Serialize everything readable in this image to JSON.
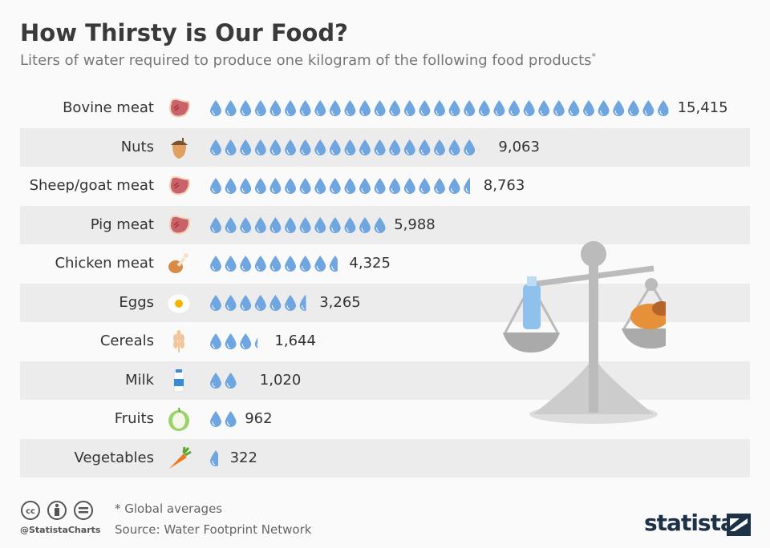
{
  "title": "How Thirsty is Our Food?",
  "subtitle": "Liters of water required to produce one kilogram of the following food products",
  "subtitle_mark": "*",
  "colors": {
    "drop": "#6fa6e0",
    "row_alt": "#ececec",
    "brand": "#1d3147"
  },
  "chart_data": {
    "type": "bar",
    "unit_per_icon": 500,
    "categories": [
      "Bovine meat",
      "Nuts",
      "Sheep/goat meat",
      "Pig meat",
      "Chicken meat",
      "Eggs",
      "Cereals",
      "Milk",
      "Fruits",
      "Vegetables"
    ],
    "values": [
      15415,
      9063,
      8763,
      5988,
      4325,
      3265,
      1644,
      1020,
      962,
      322
    ],
    "labels": [
      "15,415",
      "9,063",
      "8,763",
      "5,988",
      "4,325",
      "3,265",
      "1,644",
      "1,020",
      "962",
      "322"
    ],
    "icons": [
      "steak-icon",
      "acorn-icon",
      "steak-icon",
      "steak-icon",
      "chicken-leg-icon",
      "egg-icon",
      "wheat-icon",
      "milk-icon",
      "apple-icon",
      "carrot-icon"
    ]
  },
  "footer": {
    "note": "* Global averages",
    "source": "Source: Water Footprint Network",
    "handle": "@StatistaCharts",
    "logo": "statista"
  }
}
